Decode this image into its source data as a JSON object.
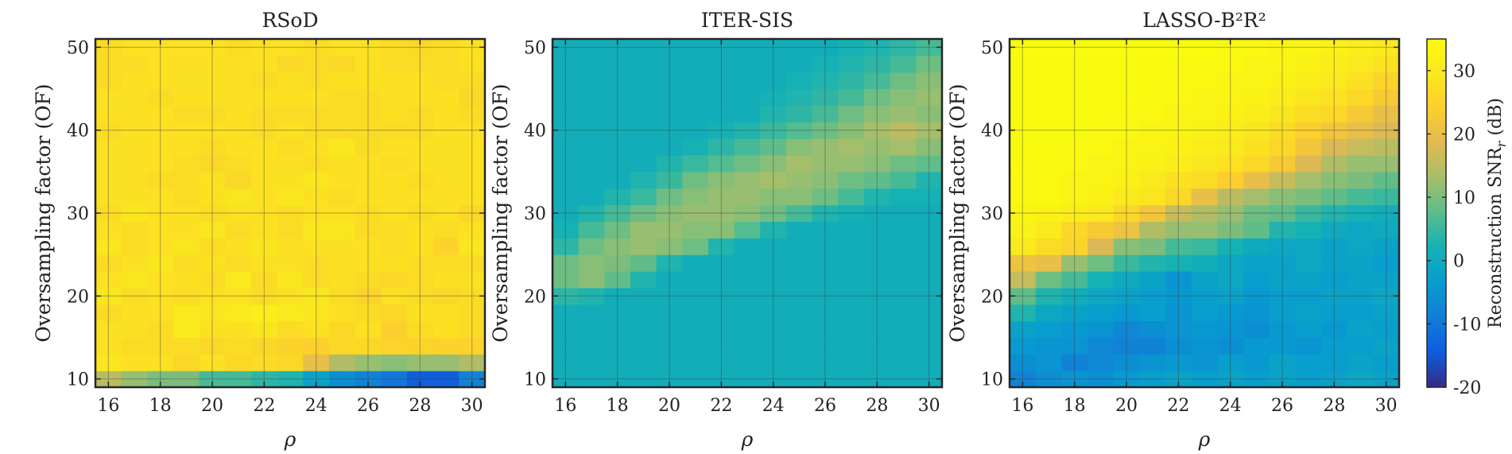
{
  "chart_data": {
    "type": "heatmap",
    "grid": true,
    "colormap": "parula",
    "xlim": [
      15.5,
      30.5
    ],
    "ylim": [
      9,
      51
    ],
    "x_ticks": [
      "16",
      "18",
      "20",
      "22",
      "24",
      "26",
      "28",
      "30"
    ],
    "y_ticks": [
      "10",
      "20",
      "30",
      "40",
      "50"
    ],
    "x_values": [
      16,
      17,
      18,
      19,
      20,
      21,
      22,
      23,
      24,
      25,
      26,
      27,
      28,
      29,
      30
    ],
    "y_values": [
      10,
      12,
      14,
      16,
      18,
      20,
      22,
      24,
      26,
      28,
      30,
      32,
      34,
      36,
      38,
      40,
      42,
      44,
      46,
      48,
      50
    ],
    "panels": [
      {
        "title": "RSoD",
        "xlabel": "ρ",
        "ylabel": "Oversampling factor (OF)",
        "z": [
          [
            15,
            12,
            10,
            10,
            6,
            6,
            4,
            3,
            -2,
            -6,
            -8,
            -10,
            -14,
            -14,
            -8
          ],
          [
            29,
            28,
            28,
            26,
            28,
            26,
            27,
            26,
            20,
            14,
            12,
            11,
            12,
            12,
            14
          ],
          [
            28,
            27,
            27,
            27,
            26,
            27,
            26,
            25,
            24,
            26,
            26,
            25,
            25,
            25,
            25
          ],
          [
            28,
            28,
            27,
            30,
            28,
            28,
            29,
            27,
            28,
            26,
            28,
            24,
            27,
            28,
            27
          ],
          [
            27,
            28,
            28,
            30,
            29,
            30,
            31,
            30,
            29,
            28,
            27,
            26,
            28,
            28,
            27
          ],
          [
            29,
            27,
            28,
            27,
            28,
            28,
            27,
            28,
            29,
            27,
            25,
            28,
            27,
            26,
            27
          ],
          [
            28,
            29,
            28,
            28,
            27,
            30,
            27,
            29,
            27,
            28,
            27,
            26,
            27,
            28,
            28
          ],
          [
            27,
            28,
            29,
            27,
            28,
            27,
            28,
            28,
            27,
            28,
            28,
            28,
            27,
            27,
            27
          ],
          [
            29,
            27,
            28,
            29,
            27,
            28,
            29,
            28,
            28,
            28,
            28,
            27,
            28,
            25,
            29
          ],
          [
            28,
            27,
            28,
            28,
            29,
            27,
            28,
            27,
            29,
            29,
            27,
            27,
            28,
            27,
            28
          ],
          [
            27,
            29,
            28,
            28,
            27,
            28,
            28,
            27,
            28,
            28,
            27,
            28,
            27,
            28,
            26
          ],
          [
            28,
            28,
            28,
            27,
            28,
            29,
            28,
            29,
            28,
            27,
            28,
            28,
            28,
            28,
            28
          ],
          [
            28,
            28,
            27,
            27,
            28,
            26,
            28,
            28,
            29,
            28,
            28,
            28,
            27,
            28,
            28
          ],
          [
            28,
            28,
            28,
            27,
            26,
            27,
            28,
            28,
            27,
            28,
            28,
            27,
            28,
            28,
            28
          ],
          [
            28,
            28,
            28,
            28,
            27,
            28,
            28,
            27,
            28,
            29,
            27,
            28,
            28,
            28,
            28
          ],
          [
            27,
            28,
            28,
            28,
            28,
            28,
            27,
            28,
            27,
            27,
            27,
            27,
            27,
            28,
            28
          ],
          [
            28,
            28,
            28,
            27,
            27,
            28,
            27,
            27,
            27,
            27,
            27,
            28,
            27,
            28,
            27
          ],
          [
            28,
            28,
            27,
            28,
            28,
            28,
            28,
            28,
            28,
            27,
            27,
            28,
            28,
            28,
            26
          ],
          [
            27,
            28,
            28,
            28,
            28,
            28,
            27,
            28,
            27,
            28,
            28,
            28,
            28,
            27,
            27
          ],
          [
            27,
            27,
            28,
            28,
            28,
            28,
            28,
            26,
            27,
            26,
            28,
            27,
            27,
            27,
            28
          ],
          [
            27,
            28,
            28,
            28,
            28,
            27,
            28,
            28,
            27,
            28,
            28,
            27,
            26,
            27,
            28
          ]
        ]
      },
      {
        "title": "ITER-SIS",
        "xlabel": "ρ",
        "ylabel": "Oversampling factor (OF)",
        "z": [
          [
            1,
            1,
            1,
            1,
            1,
            1,
            1,
            1,
            1,
            1,
            1,
            1,
            1,
            1,
            1
          ],
          [
            1,
            1,
            1,
            1,
            1,
            1,
            1,
            1,
            1,
            1,
            1,
            1,
            1,
            1,
            1
          ],
          [
            1,
            1,
            1,
            1,
            1,
            1,
            1,
            1,
            1,
            1,
            1,
            1,
            1,
            1,
            1
          ],
          [
            1,
            1,
            1,
            1,
            1,
            1,
            1,
            1,
            1,
            1,
            1,
            1,
            1,
            1,
            1
          ],
          [
            1,
            1,
            1,
            1,
            1,
            1,
            1,
            1,
            1,
            1,
            1,
            1,
            1,
            1,
            1
          ],
          [
            4,
            3,
            1,
            1,
            1,
            1,
            1,
            1,
            1,
            1,
            1,
            1,
            1,
            1,
            1
          ],
          [
            9,
            11,
            8,
            3,
            1,
            1,
            1,
            1,
            1,
            1,
            1,
            1,
            1,
            1,
            1
          ],
          [
            9,
            11,
            10,
            8,
            3,
            1,
            1,
            1,
            1,
            1,
            1,
            1,
            1,
            1,
            1
          ],
          [
            4,
            9,
            11,
            12,
            11,
            9,
            3,
            1,
            1,
            1,
            1,
            1,
            1,
            1,
            1
          ],
          [
            2,
            6,
            9,
            12,
            12,
            11,
            11,
            7,
            3,
            1,
            1,
            1,
            1,
            1,
            1
          ],
          [
            1,
            3,
            6,
            9,
            11,
            12,
            12,
            11,
            9,
            6,
            3,
            2,
            1,
            1,
            1
          ],
          [
            1,
            1,
            3,
            5,
            9,
            11,
            12,
            12,
            11,
            11,
            9,
            6,
            3,
            2,
            2
          ],
          [
            1,
            1,
            1,
            3,
            5,
            9,
            11,
            12,
            13,
            12,
            11,
            9,
            8,
            6,
            3
          ],
          [
            1,
            1,
            1,
            1,
            3,
            5,
            7,
            9,
            11,
            13,
            12,
            12,
            11,
            9,
            8
          ],
          [
            1,
            1,
            1,
            1,
            1,
            2,
            4,
            6,
            8,
            11,
            12,
            13,
            12,
            13,
            11
          ],
          [
            1,
            1,
            1,
            1,
            1,
            1,
            2,
            3,
            5,
            7,
            9,
            11,
            13,
            15,
            13
          ],
          [
            1,
            1,
            1,
            1,
            1,
            1,
            1,
            1,
            3,
            4,
            6,
            9,
            11,
            12,
            11
          ],
          [
            1,
            1,
            1,
            1,
            1,
            1,
            1,
            1,
            2,
            3,
            4,
            6,
            9,
            11,
            12
          ],
          [
            1,
            1,
            1,
            1,
            1,
            1,
            1,
            1,
            1,
            2,
            3,
            4,
            6,
            9,
            11
          ],
          [
            1,
            1,
            1,
            1,
            1,
            1,
            1,
            1,
            1,
            1,
            2,
            3,
            4,
            6,
            9
          ],
          [
            1,
            1,
            1,
            1,
            1,
            1,
            1,
            1,
            1,
            1,
            1,
            2,
            3,
            4,
            6
          ]
        ]
      },
      {
        "title": "LASSO-B²R²",
        "xlabel": "ρ",
        "ylabel": "Oversampling factor (OF)",
        "z": [
          [
            -8,
            -6,
            -5,
            -6,
            -4,
            -3,
            -2,
            -3,
            -2,
            -3,
            -2,
            -3,
            -2,
            -1,
            -2
          ],
          [
            -6,
            -5,
            -8,
            -7,
            -6,
            -5,
            -4,
            -5,
            -3,
            -4,
            -2,
            -3,
            -3,
            -2,
            -3
          ],
          [
            -4,
            -5,
            -5,
            -7,
            -8,
            -8,
            -6,
            -5,
            -6,
            -4,
            -4,
            -5,
            -3,
            -3,
            -2
          ],
          [
            -2,
            -3,
            -4,
            -5,
            -7,
            -6,
            -5,
            -4,
            -5,
            -6,
            -4,
            -3,
            -4,
            -2,
            -3
          ],
          [
            3,
            -1,
            -2,
            -3,
            -4,
            -3,
            -5,
            -3,
            -4,
            -5,
            -3,
            -2,
            -3,
            -3,
            -2
          ],
          [
            8,
            3,
            1,
            -1,
            -2,
            -3,
            -4,
            -3,
            -2,
            -4,
            -3,
            -3,
            -2,
            -2,
            -1
          ],
          [
            16,
            9,
            6,
            2,
            0,
            -2,
            -5,
            -2,
            -1,
            -3,
            -2,
            -2,
            -3,
            -2,
            -2
          ],
          [
            21,
            20,
            12,
            9,
            5,
            3,
            2,
            1,
            -1,
            -2,
            -2,
            -1,
            -2,
            -2,
            -3
          ],
          [
            30,
            27,
            25,
            18,
            11,
            10,
            6,
            5,
            2,
            0,
            -1,
            -1,
            -2,
            -1,
            -2
          ],
          [
            32,
            30,
            26,
            23,
            21,
            14,
            12,
            12,
            10,
            8,
            3,
            2,
            0,
            -1,
            0
          ],
          [
            33,
            32,
            31,
            30,
            26,
            22,
            16,
            14,
            12,
            9,
            8,
            5,
            3,
            2,
            1
          ],
          [
            34,
            34,
            33,
            32,
            30,
            29,
            26,
            20,
            15,
            13,
            11,
            10,
            8,
            6,
            5
          ],
          [
            34,
            34,
            33,
            33,
            32,
            30,
            28,
            27,
            24,
            20,
            16,
            13,
            11,
            10,
            8
          ],
          [
            35,
            34,
            34,
            33,
            33,
            32,
            31,
            29,
            28,
            26,
            23,
            18,
            14,
            12,
            12
          ],
          [
            35,
            35,
            34,
            34,
            33,
            33,
            32,
            31,
            30,
            28,
            26,
            22,
            18,
            16,
            15
          ],
          [
            35,
            35,
            35,
            34,
            34,
            33,
            33,
            32,
            31,
            29,
            27,
            24,
            22,
            20,
            18
          ],
          [
            35,
            35,
            35,
            35,
            34,
            34,
            33,
            33,
            32,
            31,
            29,
            27,
            26,
            23,
            20
          ],
          [
            35,
            35,
            35,
            35,
            35,
            34,
            34,
            33,
            33,
            32,
            31,
            29,
            28,
            26,
            23
          ],
          [
            35,
            35,
            35,
            35,
            35,
            35,
            34,
            34,
            33,
            33,
            32,
            31,
            30,
            28,
            25
          ],
          [
            35,
            35,
            35,
            35,
            35,
            35,
            35,
            34,
            34,
            33,
            33,
            32,
            31,
            30,
            28
          ],
          [
            35,
            35,
            35,
            35,
            35,
            35,
            35,
            35,
            34,
            34,
            33,
            33,
            32,
            31,
            30
          ]
        ]
      }
    ],
    "colorbar": {
      "label": "Reconstruction SNR",
      "label_sub": "r",
      "label_unit": "(dB)",
      "range": [
        -20,
        35
      ],
      "ticks": [
        "30",
        "20",
        "10",
        "0",
        "-10",
        "-20"
      ],
      "tick_values": [
        30,
        20,
        10,
        0,
        -10,
        -20
      ]
    }
  }
}
